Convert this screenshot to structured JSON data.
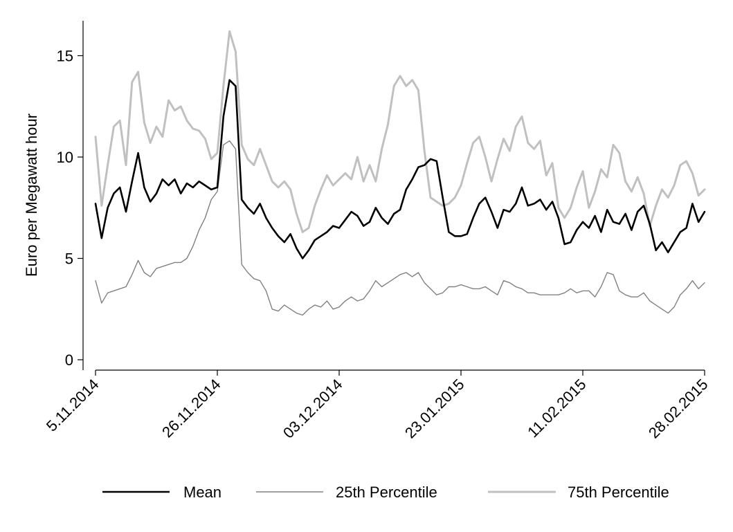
{
  "chart_data": {
    "type": "line",
    "title": "",
    "xlabel": "",
    "ylabel": "Euro per Megawatt hour",
    "ylim": [
      0,
      16.5
    ],
    "y_ticks": [
      0,
      5,
      10,
      15
    ],
    "x_tick_labels": [
      "5.11.2014",
      "26.11.2014",
      "03.12.2014",
      "23.01.2015",
      "11.02.2015",
      "28.02.2015"
    ],
    "x_tick_positions": [
      0,
      20,
      40,
      60,
      80,
      100
    ],
    "x_range": [
      0,
      100
    ],
    "grid": false,
    "legend_position": "bottom",
    "series": [
      {
        "name": "Mean",
        "color": "#000000",
        "x": [
          0,
          1,
          2,
          3,
          4,
          5,
          6,
          7,
          8,
          9,
          10,
          11,
          12,
          13,
          14,
          15,
          16,
          17,
          18,
          19,
          20,
          21,
          22,
          23,
          24,
          25,
          26,
          27,
          28,
          29,
          30,
          31,
          32,
          33,
          34,
          35,
          36,
          37,
          38,
          39,
          40,
          41,
          42,
          43,
          44,
          45,
          46,
          47,
          48,
          49,
          50,
          51,
          52,
          53,
          54,
          55,
          56,
          57,
          58,
          59,
          60,
          61,
          62,
          63,
          64,
          65,
          66,
          67,
          68,
          69,
          70,
          71,
          72,
          73,
          74,
          75,
          76,
          77,
          78,
          79,
          80,
          81,
          82,
          83,
          84,
          85,
          86,
          87,
          88,
          89,
          90,
          91,
          92,
          93,
          94,
          95,
          96,
          97,
          98,
          99,
          100
        ],
        "values": [
          7.7,
          6.0,
          7.5,
          8.2,
          8.5,
          7.3,
          8.8,
          10.2,
          8.5,
          7.8,
          8.2,
          8.9,
          8.6,
          8.9,
          8.2,
          8.7,
          8.5,
          8.8,
          8.6,
          8.4,
          8.5,
          12.0,
          13.8,
          13.5,
          7.9,
          7.5,
          7.2,
          7.7,
          7.0,
          6.5,
          6.1,
          5.8,
          6.2,
          5.5,
          5.0,
          5.4,
          5.9,
          6.1,
          6.3,
          6.6,
          6.5,
          6.9,
          7.3,
          7.1,
          6.6,
          6.8,
          7.5,
          7.0,
          6.7,
          7.2,
          7.4,
          8.4,
          8.9,
          9.5,
          9.6,
          9.9,
          9.8,
          8.0,
          6.3,
          6.1,
          6.1,
          6.2,
          7.0,
          7.7,
          8.0,
          7.3,
          6.5,
          7.4,
          7.3,
          7.7,
          8.5,
          7.6,
          7.7,
          7.9,
          7.4,
          7.8,
          7.0,
          5.7,
          5.8,
          6.4,
          6.8,
          6.5,
          7.1,
          6.3,
          7.4,
          6.8,
          6.7,
          7.2,
          6.4,
          7.3,
          7.6,
          6.7,
          5.4,
          5.8,
          5.3,
          5.8,
          6.3,
          6.5,
          7.7,
          6.8,
          7.3
        ]
      },
      {
        "name": "25th Percentile",
        "color": "#808080",
        "x": [
          0,
          1,
          2,
          3,
          4,
          5,
          6,
          7,
          8,
          9,
          10,
          11,
          12,
          13,
          14,
          15,
          16,
          17,
          18,
          19,
          20,
          21,
          22,
          23,
          24,
          25,
          26,
          27,
          28,
          29,
          30,
          31,
          32,
          33,
          34,
          35,
          36,
          37,
          38,
          39,
          40,
          41,
          42,
          43,
          44,
          45,
          46,
          47,
          48,
          49,
          50,
          51,
          52,
          53,
          54,
          55,
          56,
          57,
          58,
          59,
          60,
          61,
          62,
          63,
          64,
          65,
          66,
          67,
          68,
          69,
          70,
          71,
          72,
          73,
          74,
          75,
          76,
          77,
          78,
          79,
          80,
          81,
          82,
          83,
          84,
          85,
          86,
          87,
          88,
          89,
          90,
          91,
          92,
          93,
          94,
          95,
          96,
          97,
          98,
          99,
          100
        ],
        "values": [
          3.9,
          2.8,
          3.3,
          3.4,
          3.5,
          3.6,
          4.2,
          4.9,
          4.3,
          4.1,
          4.5,
          4.6,
          4.7,
          4.8,
          4.8,
          5.0,
          5.6,
          6.4,
          7.0,
          7.9,
          8.3,
          10.6,
          10.8,
          10.4,
          4.7,
          4.3,
          4.0,
          3.9,
          3.4,
          2.5,
          2.4,
          2.7,
          2.5,
          2.3,
          2.2,
          2.5,
          2.7,
          2.6,
          2.9,
          2.5,
          2.6,
          2.9,
          3.1,
          2.9,
          3.0,
          3.4,
          3.9,
          3.6,
          3.8,
          4.0,
          4.2,
          4.3,
          4.1,
          4.3,
          3.8,
          3.5,
          3.2,
          3.3,
          3.6,
          3.6,
          3.7,
          3.6,
          3.5,
          3.5,
          3.6,
          3.4,
          3.2,
          3.9,
          3.8,
          3.6,
          3.5,
          3.3,
          3.3,
          3.2,
          3.2,
          3.2,
          3.2,
          3.3,
          3.5,
          3.3,
          3.4,
          3.4,
          3.1,
          3.6,
          4.3,
          4.2,
          3.4,
          3.2,
          3.1,
          3.1,
          3.3,
          2.9,
          2.7,
          2.5,
          2.3,
          2.6,
          3.2,
          3.5,
          3.9,
          3.5,
          3.8
        ]
      },
      {
        "name": "75th Percentile",
        "color": "#c0c0c0",
        "x": [
          0,
          1,
          2,
          3,
          4,
          5,
          6,
          7,
          8,
          9,
          10,
          11,
          12,
          13,
          14,
          15,
          16,
          17,
          18,
          19,
          20,
          21,
          22,
          23,
          24,
          25,
          26,
          27,
          28,
          29,
          30,
          31,
          32,
          33,
          34,
          35,
          36,
          37,
          38,
          39,
          40,
          41,
          42,
          43,
          44,
          45,
          46,
          47,
          48,
          49,
          50,
          51,
          52,
          53,
          54,
          55,
          56,
          57,
          58,
          59,
          60,
          61,
          62,
          63,
          64,
          65,
          66,
          67,
          68,
          69,
          70,
          71,
          72,
          73,
          74,
          75,
          76,
          77,
          78,
          79,
          80,
          81,
          82,
          83,
          84,
          85,
          86,
          87,
          88,
          89,
          90,
          91,
          92,
          93,
          94,
          95,
          96,
          97,
          98,
          99,
          100
        ],
        "values": [
          11.0,
          7.6,
          9.6,
          11.5,
          11.8,
          9.6,
          13.7,
          14.2,
          11.7,
          10.7,
          11.5,
          11.0,
          12.8,
          12.3,
          12.5,
          11.8,
          11.4,
          11.3,
          10.9,
          9.9,
          10.2,
          13.5,
          16.2,
          15.2,
          10.6,
          9.9,
          9.6,
          10.4,
          9.6,
          8.8,
          8.5,
          8.8,
          8.4,
          7.2,
          6.3,
          6.5,
          7.6,
          8.4,
          9.1,
          8.6,
          8.9,
          9.2,
          8.9,
          10.0,
          8.8,
          9.6,
          8.8,
          10.4,
          11.6,
          13.5,
          14.0,
          13.5,
          13.8,
          13.3,
          10.3,
          8.0,
          7.8,
          7.6,
          7.7,
          8.0,
          8.6,
          9.7,
          10.7,
          11.0,
          10.0,
          8.8,
          9.9,
          10.9,
          10.3,
          11.5,
          12.0,
          10.7,
          10.4,
          10.8,
          9.1,
          9.7,
          7.5,
          7.0,
          7.5,
          8.5,
          9.3,
          7.5,
          8.3,
          9.4,
          9.0,
          10.6,
          10.2,
          8.8,
          8.3,
          9.0,
          8.2,
          6.6,
          7.6,
          8.4,
          8.0,
          8.6,
          9.6,
          9.8,
          9.2,
          8.1,
          8.4
        ]
      }
    ]
  }
}
